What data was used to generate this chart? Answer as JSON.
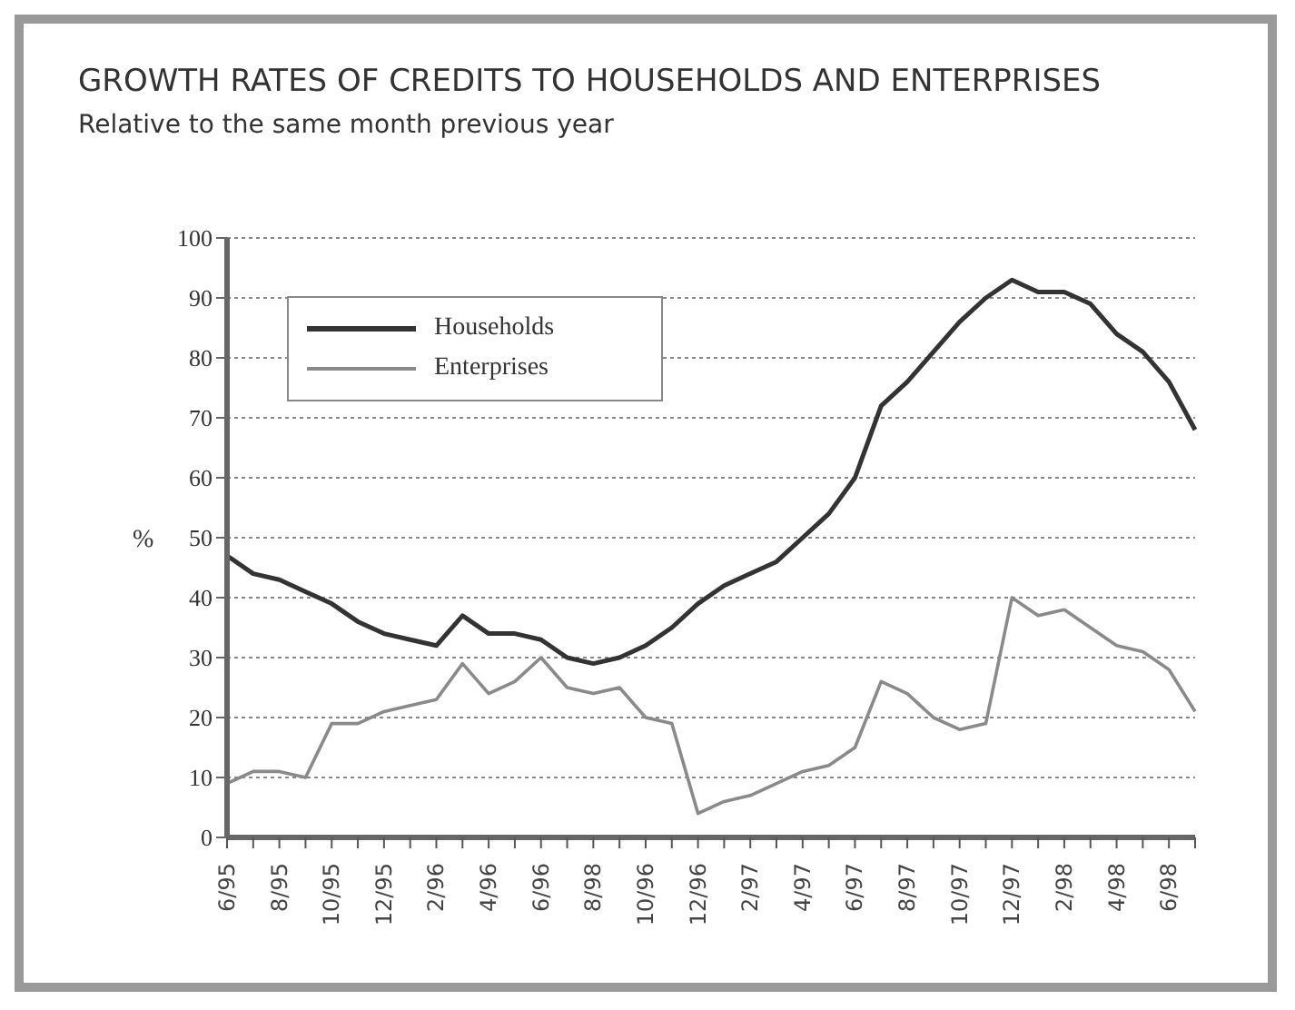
{
  "chart_data": {
    "type": "line",
    "title": "GROWTH RATES OF CREDITS TO HOUSEHOLDS AND ENTERPRISES",
    "subtitle": "Relative to the same month previous year",
    "ylabel": "%",
    "categories": [
      "6/95",
      null,
      "8/95",
      null,
      "10/95",
      null,
      "12/95",
      null,
      "2/96",
      null,
      "4/96",
      null,
      "6/96",
      null,
      "8/98",
      null,
      "10/96",
      null,
      "12/96",
      null,
      "2/97",
      null,
      "4/97",
      null,
      "6/97",
      null,
      "8/97",
      null,
      "10/97",
      null,
      "12/97",
      null,
      "2/98",
      null,
      "4/98",
      null,
      "6/98",
      null
    ],
    "series": [
      {
        "name": "Households",
        "color": "#333333",
        "values": [
          47,
          44,
          43,
          41,
          39,
          36,
          34,
          33,
          32,
          37,
          34,
          34,
          33,
          30,
          29,
          30,
          32,
          35,
          39,
          42,
          44,
          46,
          50,
          54,
          60,
          72,
          76,
          81,
          86,
          90,
          93,
          91,
          91,
          89,
          84,
          81,
          76,
          68
        ]
      },
      {
        "name": "Enterprises",
        "color": "#8a8a8a",
        "values": [
          9,
          11,
          11,
          10,
          19,
          19,
          21,
          22,
          23,
          29,
          24,
          26,
          30,
          25,
          24,
          25,
          20,
          19,
          4,
          6,
          7,
          9,
          11,
          12,
          15,
          26,
          24,
          20,
          18,
          19,
          40,
          37,
          38,
          35,
          32,
          31,
          28,
          21
        ]
      }
    ],
    "ylim": [
      0,
      100
    ],
    "yticks": [
      0,
      10,
      20,
      30,
      40,
      50,
      60,
      70,
      80,
      90,
      100
    ],
    "grid": "y",
    "legend": "top left",
    "marker": "none",
    "line_style": "solid"
  }
}
